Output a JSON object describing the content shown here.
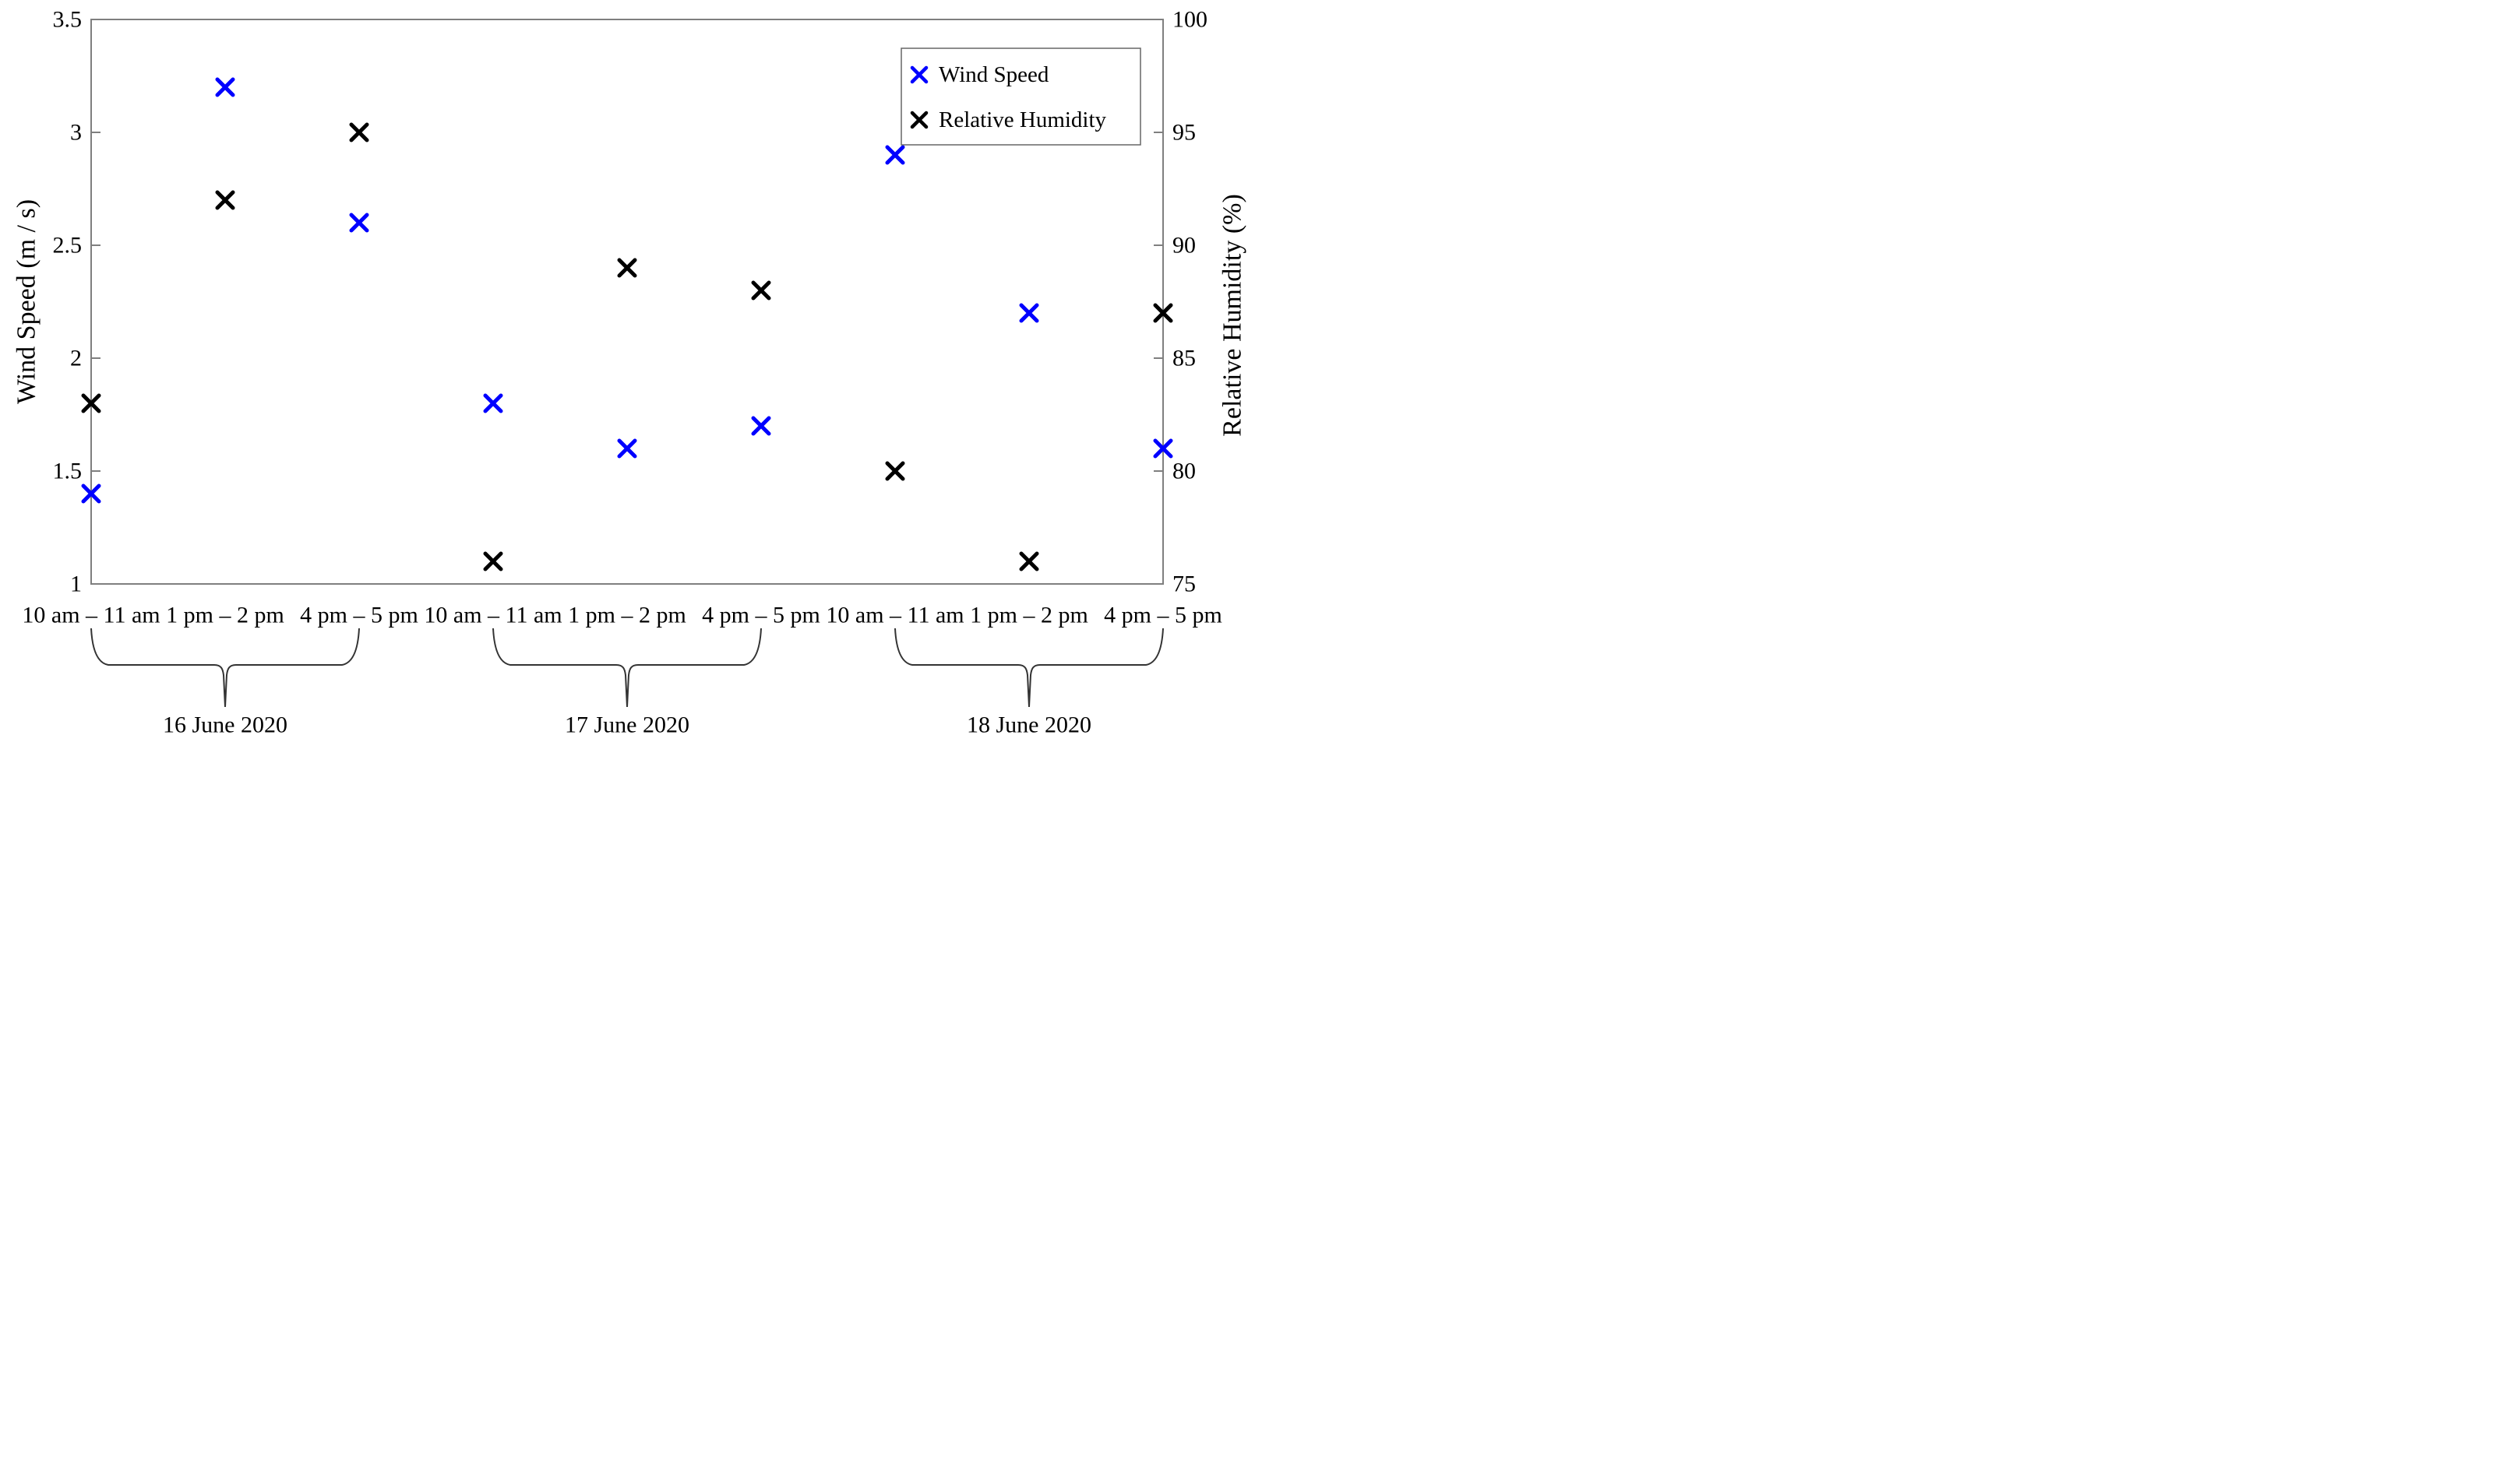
{
  "figure": {
    "background": "#ffffff",
    "axes_color": "#7f7f7f",
    "text_color": "#000000",
    "brace_color": "#333333"
  },
  "chart_data": {
    "type": "scatter",
    "marker": "x",
    "grid": false,
    "title": "",
    "categories": [
      "10 am – 11 am",
      "1 pm – 2 pm",
      "4 pm – 5 pm",
      "10 am – 11 am",
      "1 pm – 2 pm",
      "4 pm – 5 pm",
      "10 am – 11 am",
      "1 pm – 2 pm",
      "4 pm – 5 pm"
    ],
    "series": [
      {
        "name": "Wind Speed",
        "axis": "left",
        "color": "#0000ff",
        "values": [
          1.4,
          3.2,
          2.6,
          1.8,
          1.6,
          1.7,
          2.9,
          2.2,
          1.6
        ]
      },
      {
        "name": "Relative Humidity",
        "axis": "right",
        "color": "#000000",
        "values": [
          83,
          92,
          95,
          76,
          89,
          88,
          80,
          76,
          87
        ]
      }
    ],
    "y_left": {
      "label": "Wind Speed (m / s)",
      "min": 1,
      "max": 3.5,
      "ticks": [
        1,
        1.5,
        2,
        2.5,
        3,
        3.5
      ],
      "tick_labels": [
        "1",
        "1.5",
        "2",
        "2.5",
        "3",
        "3.5"
      ]
    },
    "y_right": {
      "label": "Relative Humidity (%)",
      "min": 75,
      "max": 100,
      "ticks": [
        75,
        80,
        85,
        90,
        95,
        100
      ],
      "tick_labels": [
        "75",
        "80",
        "85",
        "90",
        "95",
        "100"
      ]
    },
    "x_groups": [
      {
        "label": "16 June 2020",
        "from": 0,
        "to": 2
      },
      {
        "label": "17 June 2020",
        "from": 3,
        "to": 5
      },
      {
        "label": "18 June 2020",
        "from": 6,
        "to": 8
      }
    ],
    "legend": {
      "position": "top-right",
      "entries": [
        {
          "label": "Wind Speed",
          "color": "#0000ff"
        },
        {
          "label": "Relative Humidity",
          "color": "#000000"
        }
      ]
    }
  }
}
